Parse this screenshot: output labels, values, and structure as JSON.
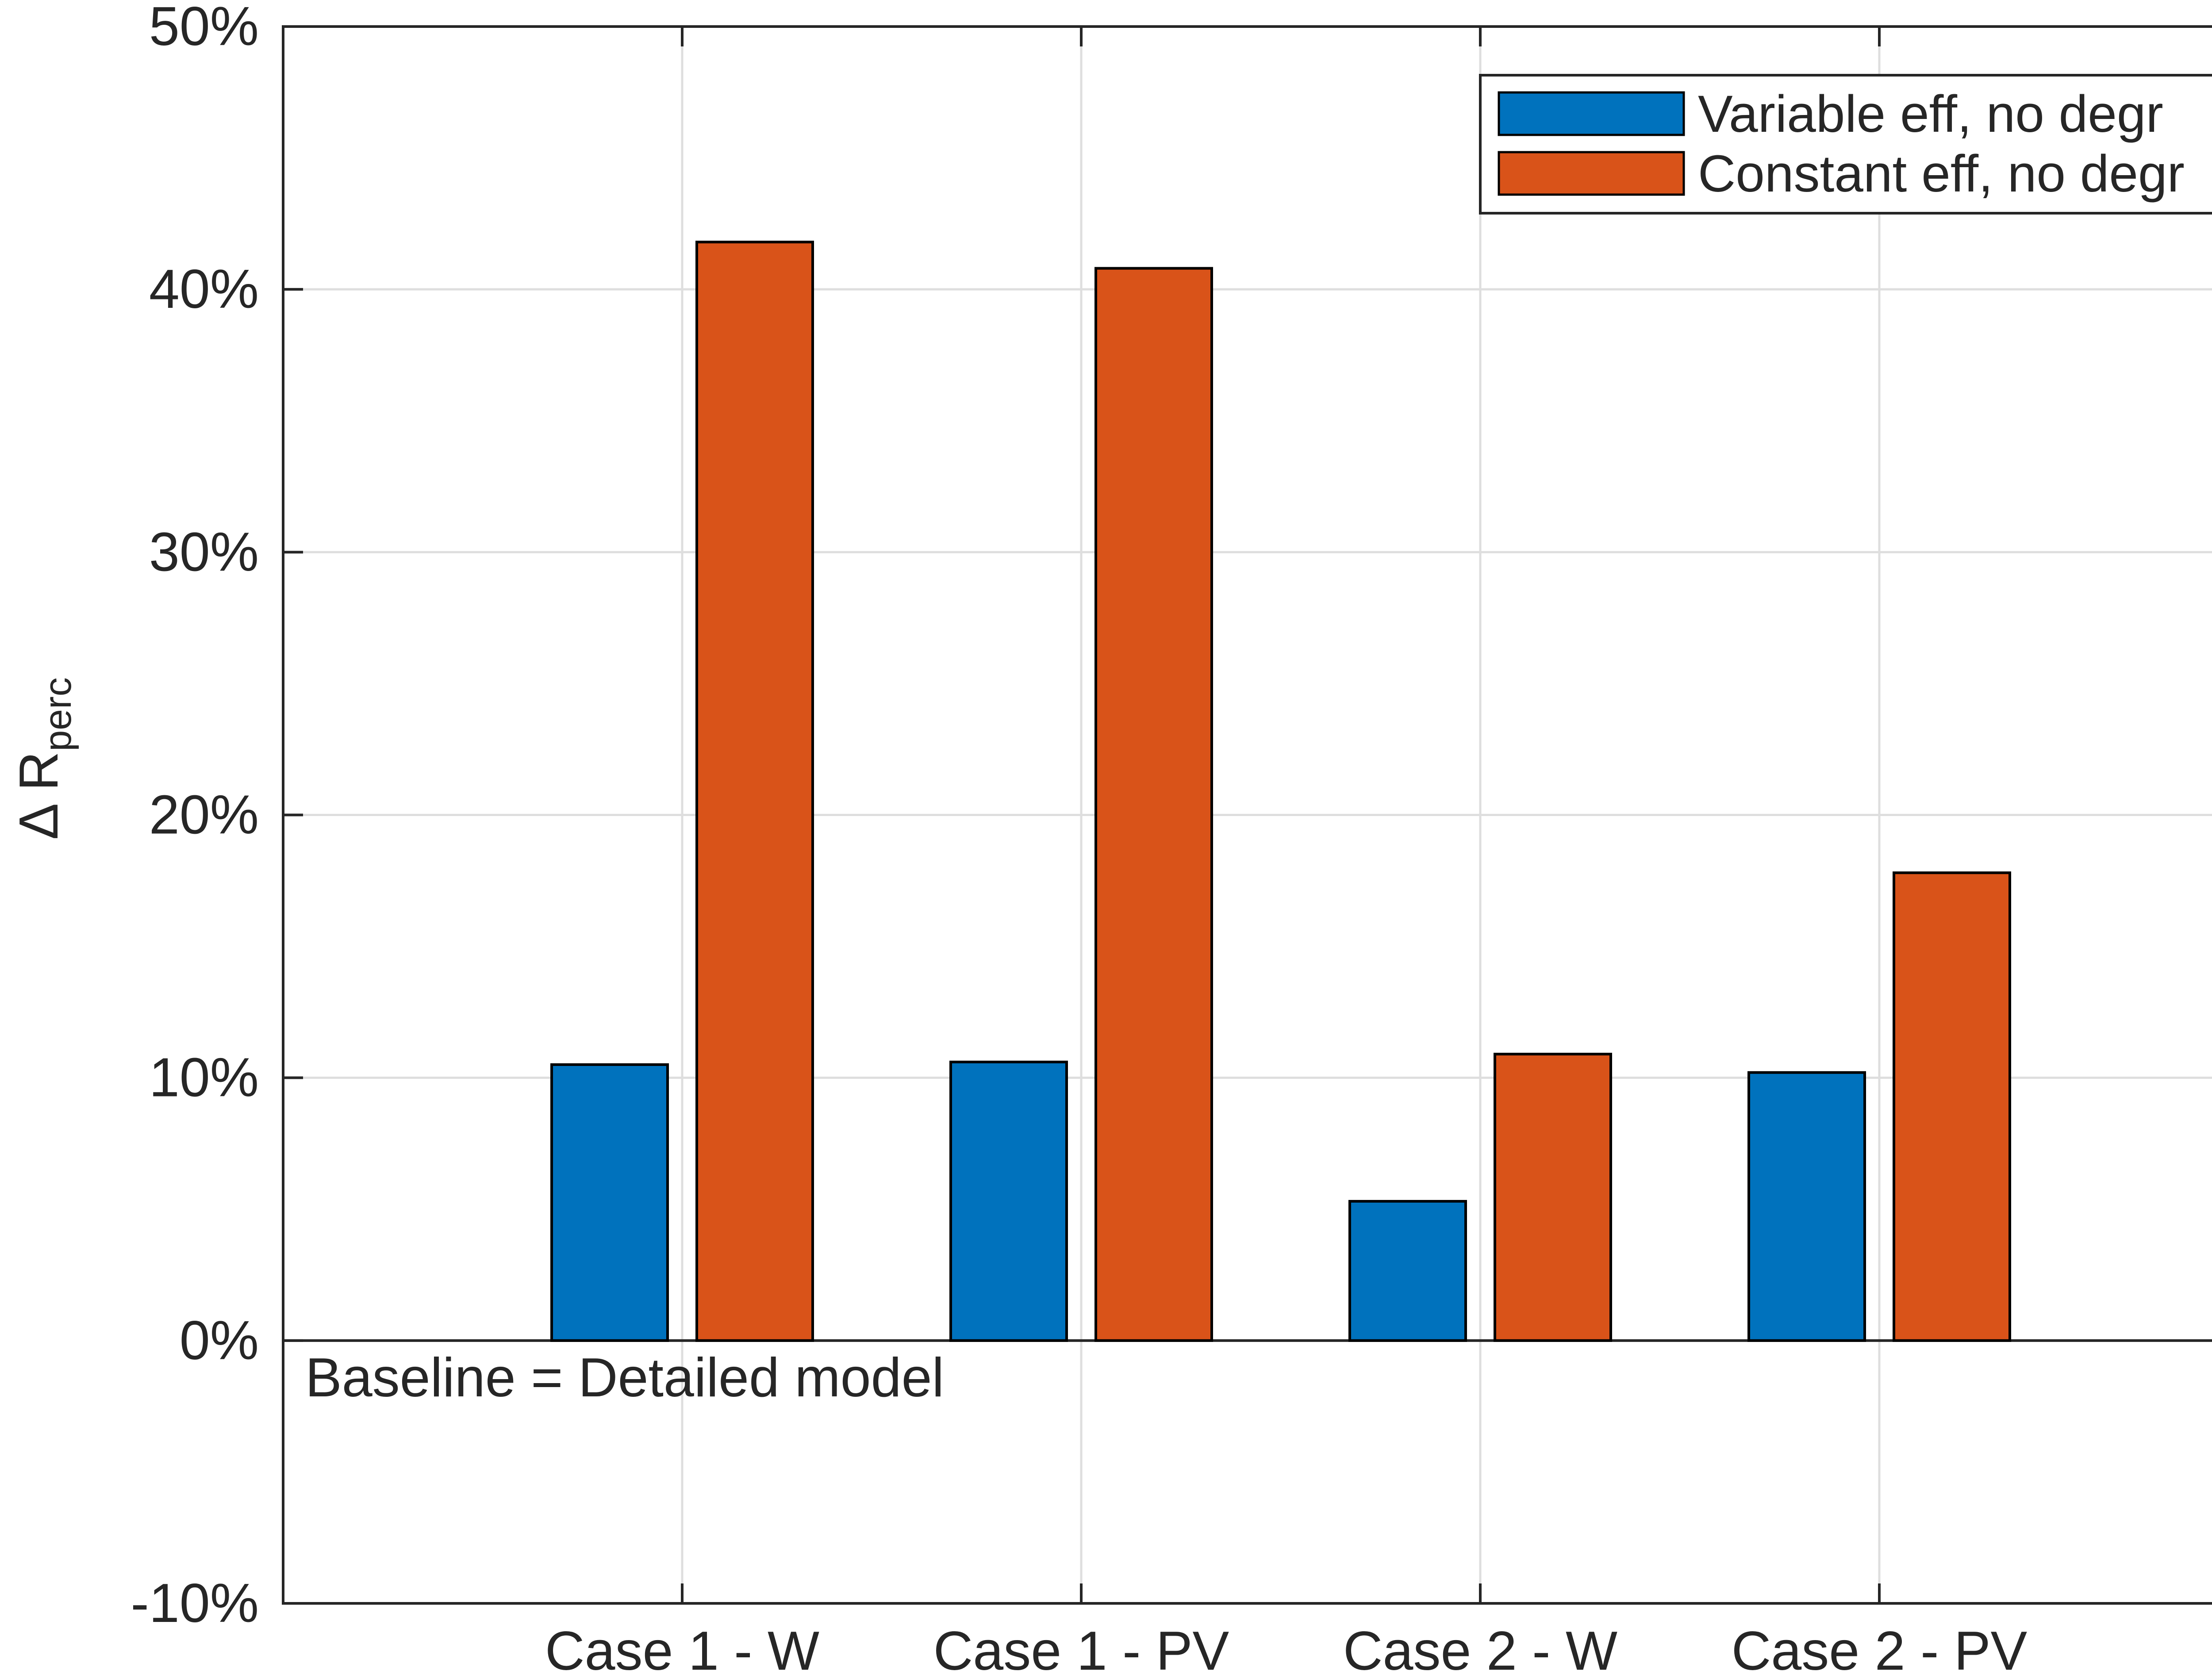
{
  "chart_data": {
    "type": "bar",
    "categories": [
      "Case 1 - W",
      "Case 1 - PV",
      "Case 2 - W",
      "Case 2 - PV"
    ],
    "series": [
      {
        "name": "Variable eff, no degr",
        "color": "#0072BD",
        "values": [
          10.5,
          10.6,
          5.3,
          10.2
        ]
      },
      {
        "name": "Constant eff, no degr",
        "color": "#D95319",
        "values": [
          41.8,
          40.8,
          10.9,
          17.8
        ]
      }
    ],
    "ylim": [
      -10,
      50
    ],
    "yticks": [
      -10,
      0,
      10,
      20,
      30,
      40,
      50
    ],
    "ytick_labels": [
      "-10%",
      "0%",
      "10%",
      "20%",
      "30%",
      "40%",
      "50%"
    ],
    "ylabel": {
      "symbol": "Δ R",
      "subscript": "perc"
    },
    "xlabel": "",
    "grid": true,
    "legend_position": "top-right",
    "annotation": "Baseline = Detailed model"
  }
}
